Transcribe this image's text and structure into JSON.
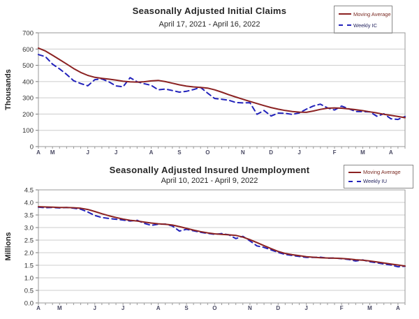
{
  "accent_colors": {
    "moving_average_line": "#8b2222",
    "weekly_line": "#2222bb",
    "gridline": "#cccccc",
    "axis_box": "#999999",
    "tick_label": "#333333",
    "month_label": "#4a4a63"
  },
  "chart_data": [
    {
      "type": "line",
      "title": "Seasonally Adjusted Initial Claims",
      "subtitle": "April 17, 2021 - April 16, 2022",
      "ylabel": "Thousands",
      "ylim": [
        0,
        700
      ],
      "yticks": [
        0,
        100,
        200,
        300,
        400,
        500,
        600,
        700
      ],
      "ytick_format": "int",
      "grid": true,
      "legend_position": "top-right",
      "x_unit": "weekly",
      "n_points": 53,
      "month_labels": [
        "A",
        "M",
        "J",
        "J",
        "A",
        "S",
        "O",
        "N",
        "D",
        "J",
        "F",
        "M",
        "A"
      ],
      "month_week_index": [
        0,
        2,
        7,
        11,
        16,
        20,
        24,
        29,
        33,
        37,
        42,
        46,
        50
      ],
      "series": [
        {
          "name": "Moving Average",
          "style": "solid",
          "color": "#8b2222",
          "values": [
            606,
            588,
            562,
            535,
            508,
            480,
            456,
            438,
            426,
            420,
            415,
            409,
            402,
            398,
            397,
            399,
            404,
            407,
            400,
            390,
            380,
            372,
            367,
            364,
            360,
            349,
            335,
            319,
            305,
            291,
            278,
            265,
            252,
            240,
            230,
            222,
            216,
            212,
            211,
            219,
            229,
            236,
            238,
            236,
            232,
            227,
            221,
            214,
            207,
            199,
            192,
            185,
            178
          ]
        },
        {
          "name": "Weekly IC",
          "style": "dashed",
          "color": "#2222bb",
          "values": [
            566,
            553,
            507,
            478,
            444,
            405,
            388,
            374,
            412,
            416,
            398,
            373,
            368,
            424,
            399,
            387,
            377,
            349,
            354,
            345,
            335,
            340,
            351,
            364,
            329,
            296,
            291,
            285,
            271,
            269,
            270,
            199,
            222,
            188,
            206,
            205,
            198,
            207,
            230,
            250,
            261,
            238,
            225,
            249,
            233,
            216,
            215,
            214,
            187,
            202,
            171,
            167,
            185
          ]
        }
      ]
    },
    {
      "type": "line",
      "title": "Seasonally Adjusted Insured Unemployment",
      "subtitle": "April 10, 2021 - April 9, 2022",
      "ylabel": "Millions",
      "ylim": [
        0,
        4.5
      ],
      "yticks": [
        0,
        0.5,
        1.0,
        1.5,
        2.0,
        2.5,
        3.0,
        3.5,
        4.0,
        4.5
      ],
      "ytick_format": "1dp",
      "grid": true,
      "legend_position": "top-right",
      "x_unit": "weekly",
      "n_points": 53,
      "month_labels": [
        "A",
        "M",
        "J",
        "J",
        "A",
        "S",
        "O",
        "N",
        "D",
        "J",
        "F",
        "M",
        "A"
      ],
      "month_week_index": [
        0,
        3,
        8,
        12,
        17,
        21,
        25,
        30,
        34,
        38,
        43,
        47,
        51
      ],
      "series": [
        {
          "name": "Moving Average",
          "style": "solid",
          "color": "#8b2222",
          "values": [
            3.83,
            3.82,
            3.81,
            3.8,
            3.8,
            3.79,
            3.77,
            3.72,
            3.64,
            3.55,
            3.47,
            3.4,
            3.34,
            3.29,
            3.26,
            3.22,
            3.18,
            3.15,
            3.13,
            3.1,
            3.04,
            2.97,
            2.9,
            2.84,
            2.79,
            2.75,
            2.73,
            2.71,
            2.69,
            2.62,
            2.52,
            2.4,
            2.28,
            2.16,
            2.05,
            1.97,
            1.92,
            1.88,
            1.84,
            1.82,
            1.8,
            1.79,
            1.78,
            1.77,
            1.75,
            1.72,
            1.7,
            1.67,
            1.63,
            1.59,
            1.55,
            1.51,
            1.47
          ]
        },
        {
          "name": "Weekly IU",
          "style": "dashed",
          "color": "#2222bb",
          "values": [
            3.81,
            3.79,
            3.8,
            3.78,
            3.8,
            3.77,
            3.73,
            3.62,
            3.48,
            3.4,
            3.36,
            3.33,
            3.3,
            3.26,
            3.29,
            3.17,
            3.09,
            3.13,
            3.14,
            3.06,
            2.86,
            2.93,
            2.87,
            2.81,
            2.77,
            2.73,
            2.76,
            2.71,
            2.56,
            2.65,
            2.47,
            2.27,
            2.21,
            2.11,
            2.01,
            1.93,
            1.89,
            1.85,
            1.81,
            1.81,
            1.82,
            1.78,
            1.79,
            1.76,
            1.73,
            1.67,
            1.71,
            1.64,
            1.6,
            1.55,
            1.51,
            1.44,
            1.46
          ]
        }
      ]
    }
  ]
}
